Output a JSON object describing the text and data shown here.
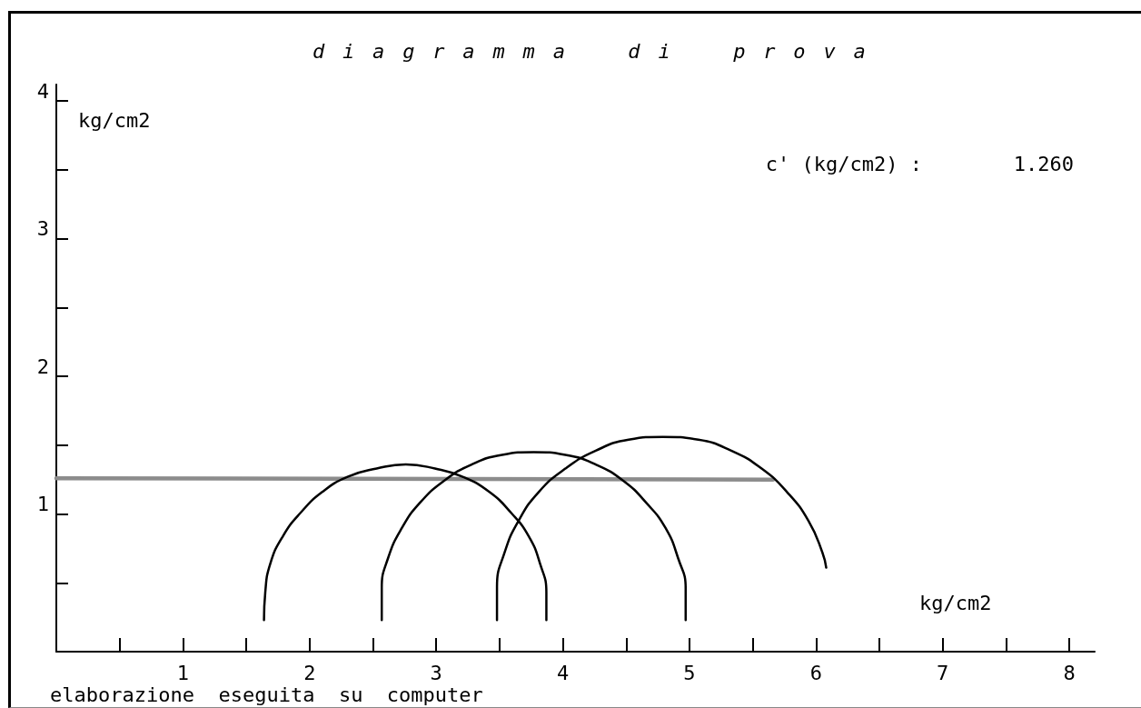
{
  "chart_data": {
    "type": "line",
    "title": "d i a g r a m m a    d i    p r o v a",
    "xlabel": "kg/cm2",
    "ylabel": "kg/cm2",
    "annotations": [
      "c' (kg/cm2) :",
      "1.260",
      "elaborazione  eseguita  su  computer"
    ],
    "xlim": [
      0,
      8.2
    ],
    "ylim": [
      0,
      4.12
    ],
    "xticks": [
      {
        "value": 0.5,
        "label": null
      },
      1,
      {
        "value": 1.5,
        "label": null
      },
      2,
      {
        "value": 2.5,
        "label": null
      },
      3,
      {
        "value": 3.5,
        "label": null
      },
      4,
      {
        "value": 4.5,
        "label": null
      },
      5,
      {
        "value": 5.5,
        "label": null
      },
      6,
      {
        "value": 6.5,
        "label": null
      },
      7,
      {
        "value": 7.5,
        "label": null
      },
      8
    ],
    "yticks": [
      {
        "value": 0.5,
        "label": null
      },
      1,
      {
        "value": 1.5,
        "label": null
      },
      2,
      {
        "value": 2.5,
        "label": null
      },
      3,
      {
        "value": 3.5,
        "label": null
      },
      4
    ],
    "marker": "none",
    "grid": false,
    "series": [
      {
        "color": "#8c8c8c",
        "x": [
          0,
          5.66
        ],
        "values": [
          1.26,
          1.25
        ]
      },
      {
        "color": "#000000",
        "x": [
          1.64,
          1.65,
          1.69,
          1.79,
          1.93,
          2.1,
          2.3,
          2.53,
          2.76,
          2.99,
          3.21,
          3.42,
          3.59,
          3.73,
          3.82,
          3.87,
          3.87
        ],
        "values": [
          0.23,
          0.43,
          0.64,
          0.84,
          1.01,
          1.16,
          1.27,
          1.33,
          1.36,
          1.33,
          1.27,
          1.16,
          1.01,
          0.84,
          0.64,
          0.43,
          0.23
        ]
      },
      {
        "color": "#000000",
        "x": [
          2.57,
          2.57,
          2.62,
          2.73,
          2.87,
          3.06,
          3.28,
          3.52,
          3.77,
          4.02,
          4.26,
          4.48,
          4.66,
          4.81,
          4.91,
          4.97,
          4.97
        ],
        "values": [
          0.23,
          0.46,
          0.68,
          0.9,
          1.08,
          1.24,
          1.36,
          1.43,
          1.45,
          1.43,
          1.36,
          1.24,
          1.08,
          0.9,
          0.68,
          0.46,
          0.23
        ]
      },
      {
        "color": "#000000",
        "x": [
          3.48,
          3.48,
          3.54,
          3.65,
          3.81,
          4.02,
          4.26,
          4.52,
          4.79,
          5.07,
          5.33,
          5.57,
          5.77,
          5.94,
          6.05,
          6.08
        ],
        "values": [
          0.23,
          0.47,
          0.72,
          0.95,
          1.16,
          1.33,
          1.46,
          1.54,
          1.56,
          1.54,
          1.46,
          1.33,
          1.16,
          0.95,
          0.72,
          0.61
        ]
      }
    ]
  }
}
